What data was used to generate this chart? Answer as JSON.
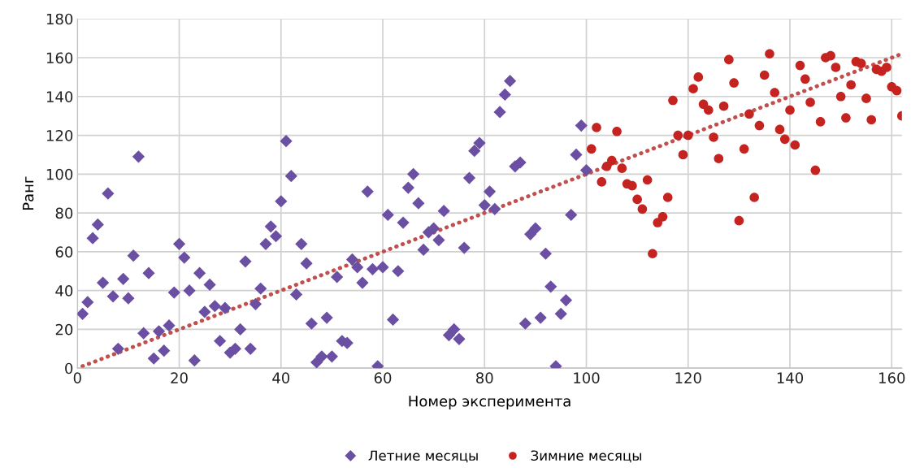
{
  "chart_data": {
    "type": "scatter",
    "xlabel": "Номер эксперимента",
    "ylabel": "Ранг",
    "xlim": [
      0,
      162
    ],
    "xticks": [
      0,
      20,
      40,
      60,
      80,
      100,
      120,
      140,
      160
    ],
    "ylim": [
      0,
      180
    ],
    "yticks": [
      0,
      20,
      40,
      60,
      80,
      100,
      120,
      140,
      160,
      180
    ],
    "grid": true,
    "legend": "bottom",
    "series": [
      {
        "name": "Летние месяцы",
        "color": "#6b4fa3",
        "marker": "diamond",
        "x": [
          1,
          2,
          3,
          4,
          5,
          6,
          7,
          8,
          9,
          10,
          11,
          12,
          13,
          14,
          15,
          16,
          17,
          18,
          19,
          20,
          21,
          22,
          23,
          24,
          25,
          26,
          27,
          28,
          29,
          30,
          31,
          32,
          33,
          34,
          35,
          36,
          37,
          38,
          39,
          40,
          41,
          42,
          43,
          44,
          45,
          46,
          47,
          48,
          49,
          50,
          51,
          52,
          53,
          54,
          55,
          56,
          57,
          58,
          59,
          60,
          61,
          62,
          63,
          64,
          65,
          66,
          67,
          68,
          69,
          70,
          71,
          72,
          73,
          74,
          75,
          76,
          77,
          78,
          79,
          80,
          81,
          82,
          83,
          84,
          85,
          86,
          87,
          88,
          89,
          90,
          91,
          92,
          93,
          94,
          95,
          96,
          97,
          98,
          99,
          100
        ],
        "values": [
          28,
          34,
          67,
          74,
          44,
          90,
          37,
          10,
          46,
          36,
          58,
          109,
          18,
          49,
          5,
          19,
          9,
          22,
          39,
          64,
          57,
          40,
          4,
          49,
          29,
          43,
          32,
          14,
          31,
          8,
          10,
          20,
          55,
          10,
          33,
          41,
          64,
          73,
          68,
          86,
          117,
          99,
          38,
          64,
          54,
          23,
          3,
          6,
          26,
          6,
          47,
          14,
          13,
          56,
          52,
          44,
          91,
          51,
          1,
          52,
          79,
          25,
          50,
          75,
          93,
          100,
          85,
          61,
          70,
          72,
          66,
          81,
          17,
          20,
          15,
          62,
          98,
          112,
          116,
          84,
          91,
          82,
          132,
          141,
          148,
          104,
          106,
          23,
          69,
          72,
          26,
          59,
          42,
          1,
          28,
          35,
          79,
          110,
          125,
          102
        ]
      },
      {
        "name": "Зимние месяцы",
        "color": "#c42320",
        "marker": "circle",
        "x": [
          101,
          102,
          103,
          104,
          105,
          106,
          107,
          108,
          109,
          110,
          111,
          112,
          113,
          114,
          115,
          116,
          117,
          118,
          119,
          120,
          121,
          122,
          123,
          124,
          125,
          126,
          127,
          128,
          129,
          130,
          131,
          132,
          133,
          134,
          135,
          136,
          137,
          138,
          139,
          140,
          141,
          142,
          143,
          144,
          145,
          146,
          147,
          148,
          149,
          150,
          151,
          152,
          153,
          154,
          155,
          156,
          157,
          158,
          159,
          160,
          161,
          162
        ],
        "values": [
          113,
          124,
          96,
          104,
          107,
          122,
          103,
          95,
          94,
          87,
          82,
          97,
          59,
          75,
          78,
          88,
          138,
          120,
          110,
          120,
          144,
          150,
          136,
          133,
          119,
          108,
          135,
          159,
          147,
          76,
          113,
          131,
          88,
          125,
          151,
          162,
          142,
          123,
          118,
          133,
          115,
          156,
          149,
          137,
          102,
          127,
          160,
          161,
          155,
          140,
          129,
          146,
          158,
          157,
          139,
          128,
          154,
          153,
          155,
          145,
          143,
          130
        ]
      },
      {
        "type": "line",
        "color": "#c0504d",
        "line_style": "dotted",
        "x": [
          1,
          162
        ],
        "values": [
          1,
          162
        ]
      }
    ]
  }
}
